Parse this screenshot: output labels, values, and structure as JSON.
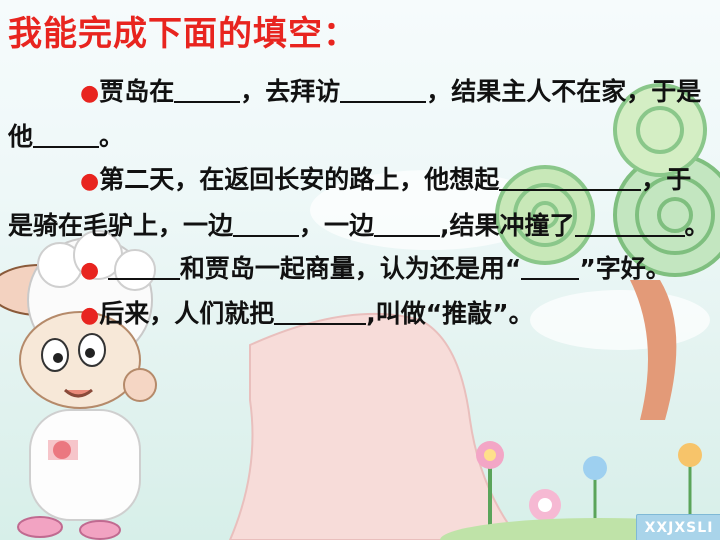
{
  "title": "我能完成下面的填空：",
  "paragraphs": [
    {
      "segments": [
        "贾岛在",
        "，去拜访",
        "，结果主人不在家，于是他",
        "。"
      ]
    },
    {
      "segments": [
        "第二天，在返回长安的路上，他想起",
        "，于是骑在毛驴上，一边",
        "，一边",
        ",结果冲撞了",
        "。"
      ]
    },
    {
      "segments": [
        "和贾岛一起商量，认为还是用“",
        "”字好。"
      ]
    },
    {
      "segments": [
        "后来，人们就把",
        ",叫做“推敲”。"
      ]
    }
  ],
  "bullet_glyph": "●",
  "watermark": "XXJXSLI",
  "colors": {
    "title": "#e8241f",
    "bullet": "#e8241f",
    "text": "#111111"
  },
  "icons": [
    "lamb-cartoon",
    "lollipop-tree",
    "sky-clouds",
    "path",
    "flowers"
  ]
}
